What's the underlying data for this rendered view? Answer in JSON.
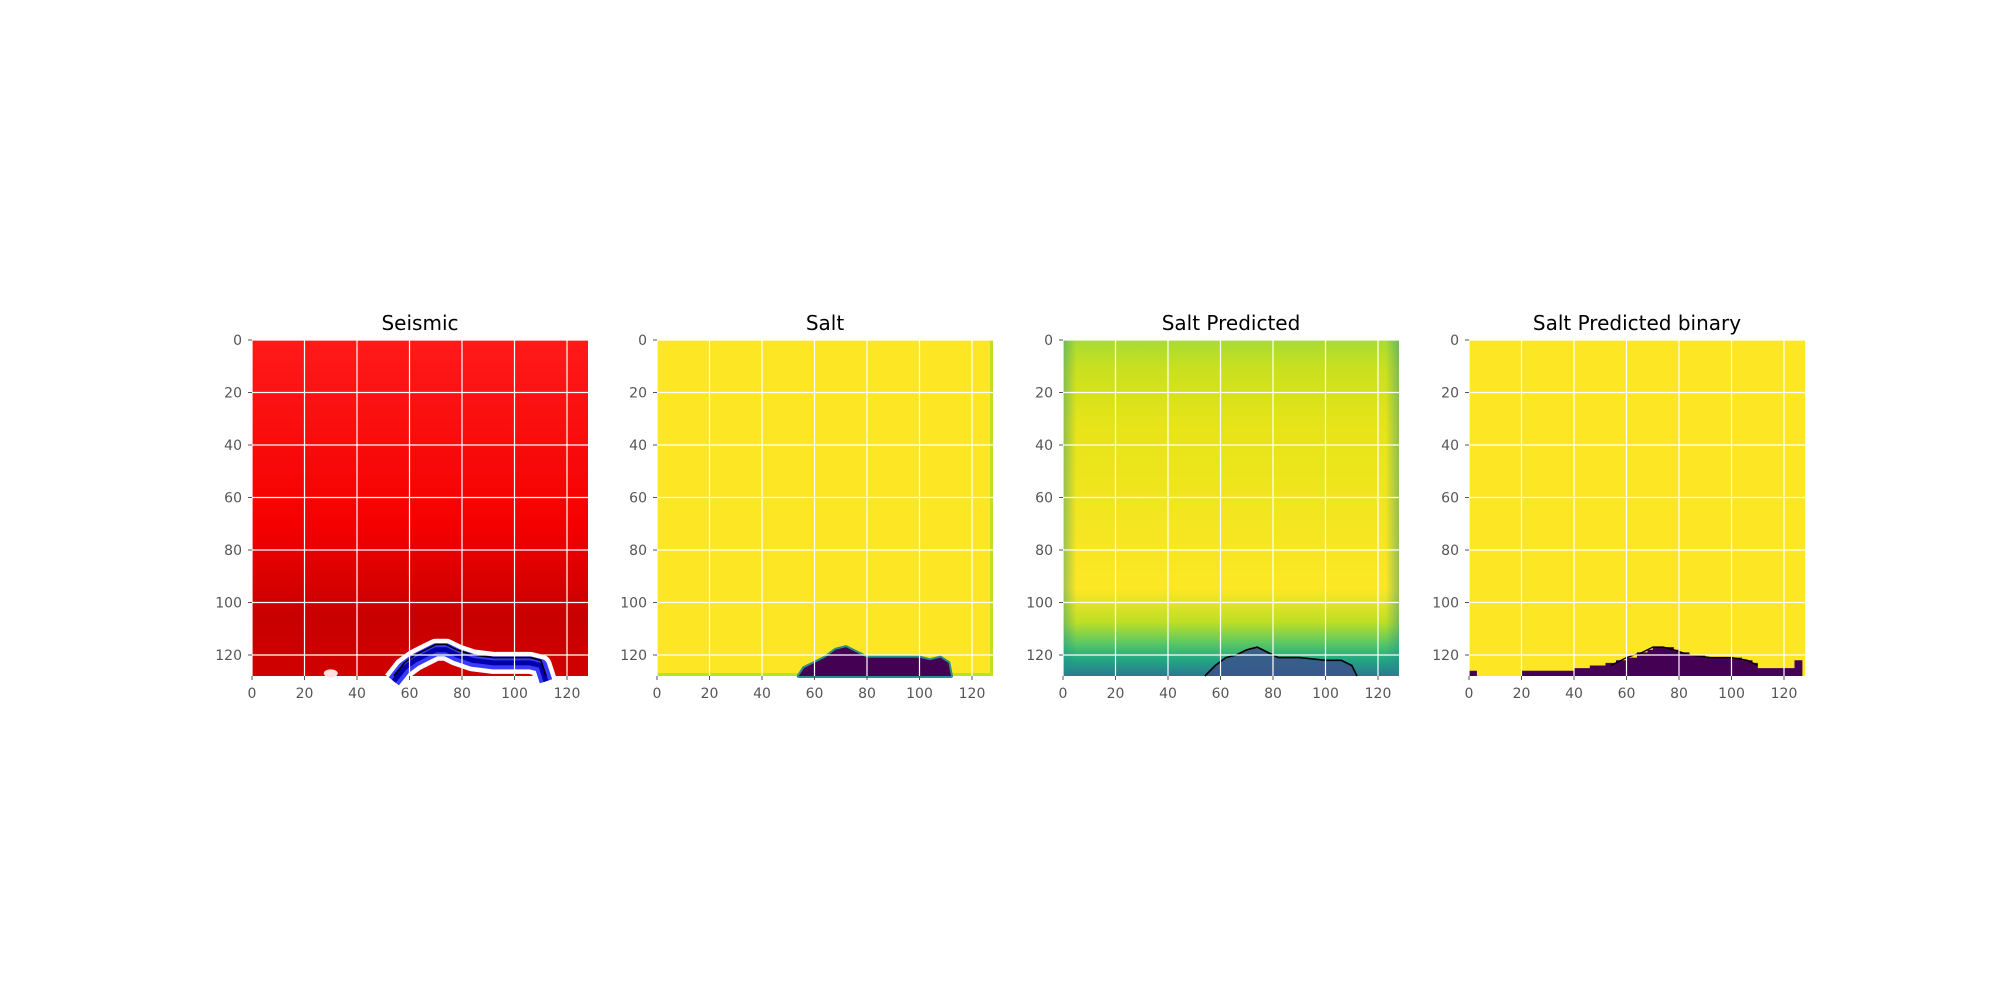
{
  "chart_data": [
    {
      "type": "heatmap",
      "title": "Seismic",
      "colormap": "seismic",
      "xlim": [
        0,
        127
      ],
      "ylim": [
        127,
        0
      ],
      "xticks": [
        0,
        20,
        40,
        60,
        80,
        100,
        120
      ],
      "yticks": [
        0,
        20,
        40,
        60,
        80,
        100,
        120
      ],
      "grid": true,
      "salt_boundary_contour": [
        [
          54,
          128
        ],
        [
          58,
          123
        ],
        [
          62,
          120
        ],
        [
          66,
          118
        ],
        [
          70,
          116
        ],
        [
          74,
          116
        ],
        [
          78,
          118
        ],
        [
          84,
          120
        ],
        [
          92,
          121
        ],
        [
          100,
          121
        ],
        [
          106,
          121
        ],
        [
          110,
          122
        ],
        [
          112,
          128
        ]
      ]
    },
    {
      "type": "heatmap",
      "title": "Salt",
      "colormap": "viridis",
      "xlim": [
        0,
        127
      ],
      "ylim": [
        127,
        0
      ],
      "xticks": [
        0,
        20,
        40,
        60,
        80,
        100,
        120
      ],
      "yticks": [
        0,
        20,
        40,
        60,
        80,
        100,
        120
      ],
      "grid": true,
      "background_value": 1,
      "salt_region_value": 0,
      "salt_region_outline": [
        [
          54,
          128
        ],
        [
          56,
          125
        ],
        [
          60,
          123
        ],
        [
          64,
          121
        ],
        [
          68,
          118
        ],
        [
          72,
          117
        ],
        [
          76,
          119
        ],
        [
          80,
          121
        ],
        [
          86,
          121
        ],
        [
          94,
          121
        ],
        [
          100,
          121
        ],
        [
          104,
          122
        ],
        [
          108,
          121
        ],
        [
          111,
          123
        ],
        [
          112,
          128
        ]
      ]
    },
    {
      "type": "heatmap",
      "title": "Salt Predicted",
      "colormap": "viridis",
      "xlim": [
        0,
        127
      ],
      "ylim": [
        127,
        0
      ],
      "xticks": [
        0,
        20,
        40,
        60,
        80,
        100,
        120
      ],
      "yticks": [
        0,
        20,
        40,
        60,
        80,
        100,
        120
      ],
      "grid": true,
      "salt_boundary_contour": [
        [
          54,
          128
        ],
        [
          58,
          124
        ],
        [
          62,
          121
        ],
        [
          66,
          120
        ],
        [
          70,
          118
        ],
        [
          74,
          117
        ],
        [
          78,
          119
        ],
        [
          82,
          121
        ],
        [
          90,
          121
        ],
        [
          100,
          122
        ],
        [
          106,
          122
        ],
        [
          110,
          124
        ],
        [
          112,
          128
        ]
      ]
    },
    {
      "type": "heatmap",
      "title": "Salt Predicted binary",
      "colormap": "viridis",
      "xlim": [
        0,
        127
      ],
      "ylim": [
        127,
        0
      ],
      "xticks": [
        0,
        20,
        40,
        60,
        80,
        100,
        120
      ],
      "yticks": [
        0,
        20,
        40,
        60,
        80,
        100,
        120
      ],
      "grid": true,
      "background_value": 1,
      "salt_region_value": 0,
      "salt_region_outline": [
        [
          0,
          128
        ],
        [
          0,
          126
        ],
        [
          3,
          126
        ],
        [
          3,
          128
        ],
        [
          20,
          128
        ],
        [
          20,
          126
        ],
        [
          40,
          126
        ],
        [
          40,
          125
        ],
        [
          46,
          125
        ],
        [
          46,
          124
        ],
        [
          52,
          124
        ],
        [
          52,
          123
        ],
        [
          56,
          123
        ],
        [
          56,
          122
        ],
        [
          60,
          122
        ],
        [
          60,
          121
        ],
        [
          64,
          121
        ],
        [
          64,
          119
        ],
        [
          68,
          119
        ],
        [
          68,
          118
        ],
        [
          70,
          118
        ],
        [
          70,
          117
        ],
        [
          78,
          117
        ],
        [
          78,
          118
        ],
        [
          80,
          118
        ],
        [
          80,
          119
        ],
        [
          84,
          119
        ],
        [
          84,
          120
        ],
        [
          90,
          120
        ],
        [
          90,
          121
        ],
        [
          104,
          121
        ],
        [
          104,
          122
        ],
        [
          108,
          122
        ],
        [
          108,
          123
        ],
        [
          110,
          123
        ],
        [
          110,
          125
        ],
        [
          124,
          125
        ],
        [
          124,
          122
        ],
        [
          127,
          122
        ],
        [
          127,
          128
        ]
      ]
    }
  ]
}
